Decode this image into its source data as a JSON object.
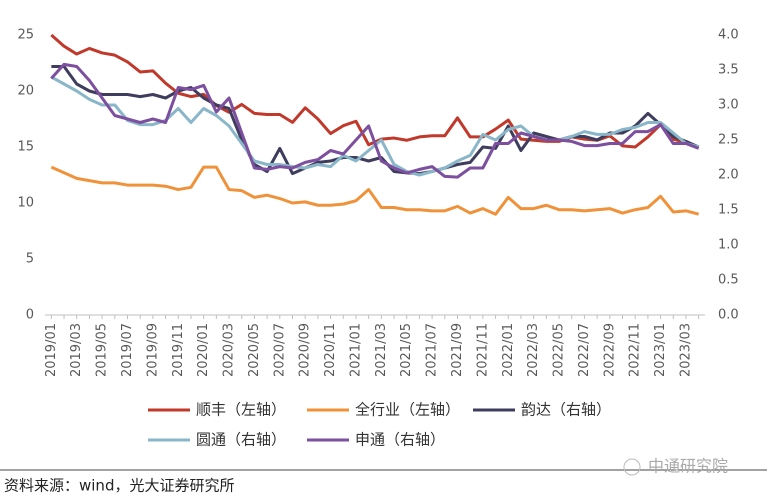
{
  "chart_data": {
    "type": "line",
    "categories": [
      "2019/01",
      null,
      "2019/03",
      null,
      "2019/05",
      null,
      "2019/07",
      null,
      "2019/09",
      null,
      "2019/11",
      null,
      "2020/01",
      null,
      "2020/03",
      null,
      "2020/05",
      null,
      "2020/07",
      null,
      "2020/09",
      null,
      "2020/11",
      null,
      "2021/01",
      null,
      "2021/03",
      null,
      "2021/05",
      null,
      "2021/07",
      null,
      "2021/09",
      null,
      "2021/11",
      null,
      "2022/01",
      null,
      "2022/03",
      null,
      "2022/05",
      null,
      "2022/07",
      null,
      "2022/09",
      null,
      "2022/11",
      null,
      "2023/01",
      null,
      "2023/03",
      null
    ],
    "series": [
      {
        "name": "顺丰（左轴）",
        "color": "#c0392b",
        "axis": "y",
        "values": [
          25.0,
          24.0,
          23.3,
          23.8,
          23.4,
          23.2,
          22.6,
          21.7,
          21.8,
          20.7,
          19.8,
          19.5,
          19.7,
          18.7,
          18.1,
          18.8,
          18.0,
          17.9,
          17.9,
          17.2,
          18.5,
          17.5,
          16.2,
          16.9,
          17.3,
          15.2,
          15.7,
          15.8,
          15.6,
          15.9,
          16.0,
          16.0,
          17.6,
          15.9,
          15.9,
          16.6,
          17.4,
          15.7,
          15.6,
          15.5,
          15.5,
          15.9,
          15.7,
          15.6,
          16.0,
          15.1,
          15.0,
          15.9,
          17.0,
          15.7,
          15.4,
          15.0
        ]
      },
      {
        "name": "全行业（左轴）",
        "color": "#f0923a",
        "axis": "y",
        "values": [
          13.2,
          12.7,
          12.2,
          12.0,
          11.8,
          11.8,
          11.6,
          11.6,
          11.6,
          11.5,
          11.2,
          11.4,
          13.2,
          13.2,
          11.2,
          11.1,
          10.5,
          10.7,
          10.4,
          10.0,
          10.1,
          9.8,
          9.8,
          9.9,
          10.2,
          11.2,
          9.6,
          9.6,
          9.4,
          9.4,
          9.3,
          9.3,
          9.7,
          9.1,
          9.5,
          9.0,
          10.5,
          9.5,
          9.5,
          9.8,
          9.4,
          9.4,
          9.3,
          9.4,
          9.5,
          9.1,
          9.4,
          9.6,
          10.6,
          9.2,
          9.3,
          9.0
        ]
      },
      {
        "name": "韵达（右轴）",
        "color": "#3f3d5e",
        "axis": "y2",
        "values": [
          3.55,
          3.55,
          3.3,
          3.2,
          3.15,
          3.15,
          3.15,
          3.12,
          3.15,
          3.1,
          3.2,
          3.25,
          3.1,
          3.0,
          2.95,
          2.5,
          2.15,
          2.05,
          2.38,
          2.02,
          2.1,
          2.18,
          2.2,
          2.25,
          2.25,
          2.2,
          2.25,
          2.05,
          2.03,
          2.02,
          2.05,
          2.1,
          2.15,
          2.18,
          2.4,
          2.38,
          2.7,
          2.35,
          2.6,
          2.55,
          2.5,
          2.55,
          2.55,
          2.5,
          2.6,
          2.6,
          2.7,
          2.88,
          2.72,
          2.55,
          2.48,
          2.4
        ]
      },
      {
        "name": "圆通（右轴）",
        "color": "#8ab6c9",
        "axis": "y2",
        "values": [
          3.4,
          3.3,
          3.2,
          3.08,
          3.0,
          3.0,
          2.78,
          2.72,
          2.72,
          2.78,
          2.95,
          2.75,
          2.95,
          2.85,
          2.7,
          2.45,
          2.2,
          2.15,
          2.15,
          2.12,
          2.1,
          2.15,
          2.12,
          2.28,
          2.2,
          2.35,
          2.5,
          2.15,
          2.05,
          2.0,
          2.05,
          2.1,
          2.2,
          2.28,
          2.58,
          2.5,
          2.65,
          2.7,
          2.55,
          2.5,
          2.5,
          2.55,
          2.62,
          2.58,
          2.58,
          2.65,
          2.68,
          2.75,
          2.75,
          2.6,
          2.45,
          2.4
        ]
      },
      {
        "name": "申通（右轴）",
        "color": "#7d4f9f",
        "axis": "y2",
        "values": [
          3.38,
          3.58,
          3.55,
          3.35,
          3.1,
          2.85,
          2.8,
          2.75,
          2.8,
          2.75,
          3.25,
          3.22,
          3.28,
          2.9,
          3.1,
          2.6,
          2.1,
          2.08,
          2.12,
          2.1,
          2.18,
          2.22,
          2.35,
          2.3,
          2.5,
          2.7,
          2.2,
          2.1,
          2.03,
          2.08,
          2.12,
          1.98,
          1.97,
          2.1,
          2.1,
          2.45,
          2.45,
          2.6,
          2.55,
          2.5,
          2.5,
          2.48,
          2.42,
          2.42,
          2.45,
          2.45,
          2.62,
          2.62,
          2.72,
          2.45,
          2.45,
          2.38
        ]
      }
    ],
    "ylim": [
      0,
      25
    ],
    "yticks": [
      0,
      5,
      10,
      15,
      20,
      25
    ],
    "y2lim": [
      0,
      4
    ],
    "y2ticks": [
      {
        "value": 0,
        "label": "0.0"
      },
      {
        "value": 0.5,
        "label": "0.5"
      },
      {
        "value": 1,
        "label": "1.0"
      },
      {
        "value": 1.5,
        "label": "1.5"
      },
      {
        "value": 2,
        "label": "2.0"
      },
      {
        "value": 2.5,
        "label": "2.5"
      },
      {
        "value": 3,
        "label": "3.0"
      },
      {
        "value": 3.5,
        "label": "3.5"
      },
      {
        "value": 4,
        "label": "4.0"
      }
    ],
    "grid": false,
    "source": "资料来源：wind，光大证券研究所",
    "watermark": "中通研究院"
  }
}
